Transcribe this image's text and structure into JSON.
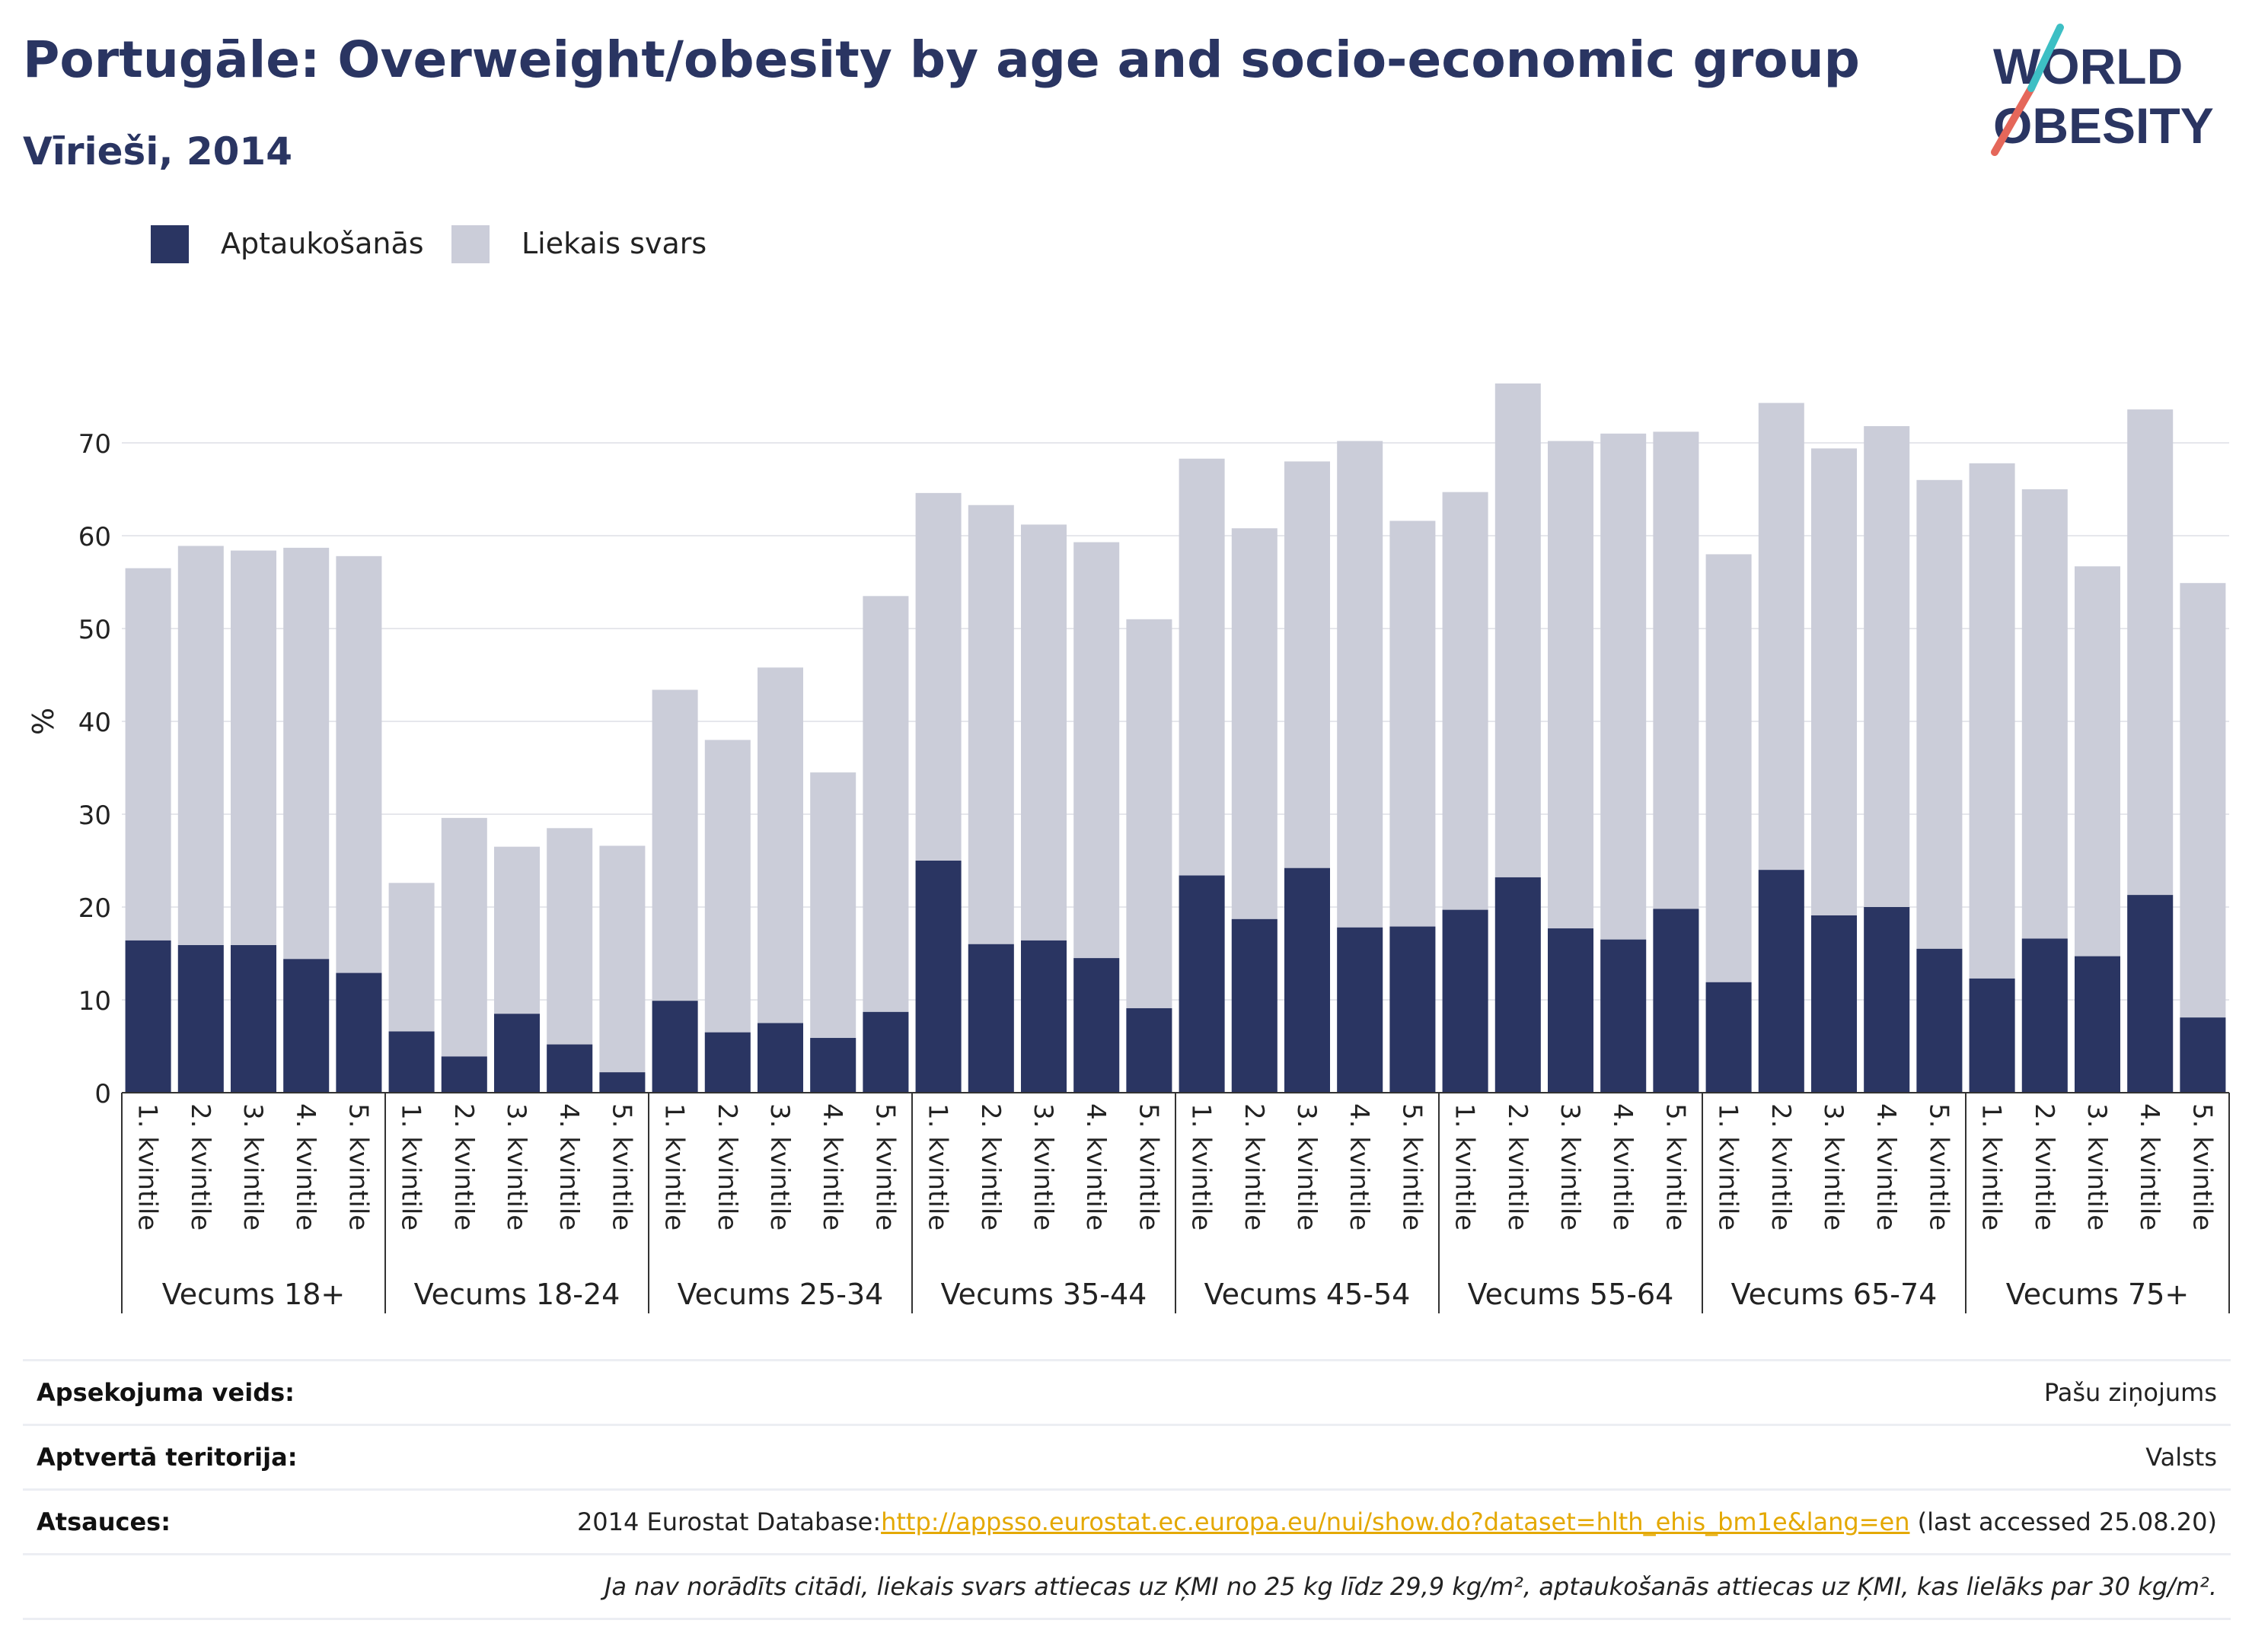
{
  "header": {
    "title": "Portugāle: Overweight/obesity by age and socio-economic group",
    "subtitle": "Vīrieši, 2014"
  },
  "logo": {
    "line1": "WORLD",
    "line2": "OBESITY"
  },
  "colors": {
    "obesity": "#2a3562",
    "overweight": "#cbcdd9",
    "accent_teal": "#3dbfc4",
    "accent_red": "#e5675a"
  },
  "chart_data": {
    "type": "bar",
    "stacked": true,
    "ylabel": "%",
    "ylim": [
      0,
      80
    ],
    "yticks": [
      0,
      10,
      20,
      30,
      40,
      50,
      60,
      70
    ],
    "grid": true,
    "legend_position": "top-left",
    "legend": [
      "Aptaukošanās",
      "Liekais svars"
    ],
    "quintile_labels": [
      "1. kvintile",
      "2. kvintile",
      "3. kvintile",
      "4. kvintile",
      "5. kvintile"
    ],
    "groups": [
      {
        "label": "Vecums 18+",
        "obesity": [
          16.4,
          15.9,
          15.9,
          14.4,
          12.9
        ],
        "total": [
          56.5,
          58.9,
          58.4,
          58.7,
          57.8
        ]
      },
      {
        "label": "Vecums 18-24",
        "obesity": [
          6.6,
          3.9,
          8.5,
          5.2,
          2.2
        ],
        "total": [
          22.6,
          29.6,
          26.5,
          28.5,
          26.6
        ]
      },
      {
        "label": "Vecums 25-34",
        "obesity": [
          9.9,
          6.5,
          7.5,
          5.9,
          8.7
        ],
        "total": [
          43.4,
          38.0,
          45.8,
          34.5,
          53.5
        ]
      },
      {
        "label": "Vecums 35-44",
        "obesity": [
          25.0,
          16.0,
          16.4,
          14.5,
          9.1
        ],
        "total": [
          64.6,
          63.3,
          61.2,
          59.3,
          51.0
        ]
      },
      {
        "label": "Vecums 45-54",
        "obesity": [
          23.4,
          18.7,
          24.2,
          17.8,
          17.9
        ],
        "total": [
          68.3,
          60.8,
          68.0,
          70.2,
          61.6
        ]
      },
      {
        "label": "Vecums 55-64",
        "obesity": [
          19.7,
          23.2,
          17.7,
          16.5,
          19.8
        ],
        "total": [
          64.7,
          76.4,
          70.2,
          71.0,
          71.2
        ]
      },
      {
        "label": "Vecums 65-74",
        "obesity": [
          11.9,
          24.0,
          19.1,
          20.0,
          15.5
        ],
        "total": [
          58.0,
          74.3,
          69.4,
          71.8,
          66.0
        ]
      },
      {
        "label": "Vecums 75+",
        "obesity": [
          12.3,
          16.6,
          14.7,
          21.3,
          8.1
        ],
        "total": [
          67.8,
          65.0,
          56.7,
          73.6,
          54.9
        ]
      }
    ]
  },
  "info": {
    "survey_label": "Apsekojuma veids:",
    "survey_value": "Pašu ziņojums",
    "territory_label": "Aptvertā teritorija:",
    "territory_value": "Valsts",
    "references_label": "Atsauces:",
    "references_prefix": "2014 Eurostat Database:",
    "references_link": "http://appsso.eurostat.ec.europa.eu/nui/show.do?dataset=hlth_ehis_bm1e&lang=en",
    "references_suffix": " (last accessed 25.08.20)",
    "note": "Ja nav norādīts citādi, liekais svars attiecas uz ĶMI no 25 kg līdz 29,9 kg/m², aptaukošanās attiecas uz ĶMI, kas lielāks par 30 kg/m²."
  }
}
